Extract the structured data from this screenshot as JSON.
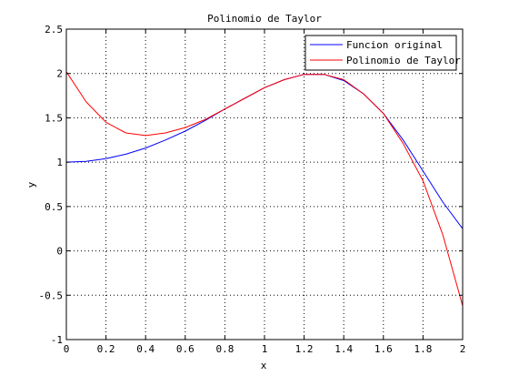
{
  "chart_data": {
    "type": "line",
    "title": "Polinomio de Taylor",
    "xlabel": "x",
    "ylabel": "y",
    "xlim": [
      0,
      2
    ],
    "ylim": [
      -1,
      2.5
    ],
    "grid": true,
    "legend_position": "top-right",
    "x_ticks": [
      "0",
      "0.2",
      "0.4",
      "0.6",
      "0.8",
      "1",
      "1.2",
      "1.4",
      "1.6",
      "1.8",
      "2"
    ],
    "y_ticks": [
      "-1",
      "-0.5",
      "0",
      "0.5",
      "1",
      "1.5",
      "2",
      "2.5"
    ],
    "x": [
      0,
      0.1,
      0.2,
      0.3,
      0.4,
      0.5,
      0.6,
      0.7,
      0.8,
      0.9,
      1.0,
      1.1,
      1.2,
      1.3,
      1.4,
      1.5,
      1.6,
      1.7,
      1.8,
      1.9,
      2.0
    ],
    "series": [
      {
        "name": "Funcion original",
        "color": "#0000ff",
        "values": [
          1.0,
          1.01,
          1.04,
          1.09,
          1.16,
          1.25,
          1.35,
          1.47,
          1.6,
          1.72,
          1.84,
          1.93,
          1.99,
          1.99,
          1.92,
          1.77,
          1.55,
          1.25,
          0.9,
          0.55,
          0.25
        ]
      },
      {
        "name": "Polinomio de Taylor",
        "color": "#ff0000",
        "values": [
          2.02,
          1.68,
          1.45,
          1.33,
          1.3,
          1.33,
          1.39,
          1.48,
          1.6,
          1.72,
          1.84,
          1.93,
          1.99,
          1.99,
          1.93,
          1.77,
          1.55,
          1.21,
          0.79,
          0.18,
          -0.62
        ]
      }
    ]
  }
}
